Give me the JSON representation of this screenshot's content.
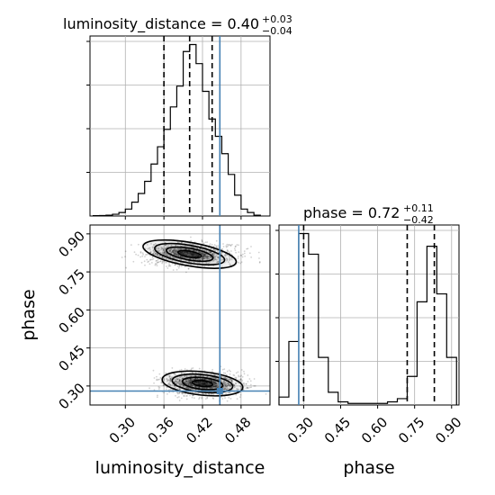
{
  "chart_data": [
    {
      "type": "histogram",
      "panel": "luminosity_distance-marginal",
      "parameter": "luminosity_distance",
      "title": {
        "prefix": "luminosity_distance = 0.40",
        "plus": "+0.03",
        "minus": "−0.04"
      },
      "xlim": [
        0.245,
        0.525
      ],
      "bin_edges": [
        0.25,
        0.26,
        0.27,
        0.28,
        0.29,
        0.3,
        0.31,
        0.32,
        0.33,
        0.34,
        0.35,
        0.36,
        0.37,
        0.38,
        0.39,
        0.4,
        0.41,
        0.42,
        0.43,
        0.44,
        0.45,
        0.46,
        0.47,
        0.48,
        0.49,
        0.5,
        0.51
      ],
      "counts": [
        0.2,
        0.3,
        0.5,
        1,
        2,
        4,
        8,
        13,
        20,
        30,
        40,
        50,
        63,
        75,
        95,
        99,
        88,
        72,
        56,
        46,
        36,
        24,
        12,
        4,
        2,
        0.5
      ],
      "quantiles": [
        0.36,
        0.4,
        0.435
      ],
      "truth": 0.447,
      "truth_color": "#4682b4"
    },
    {
      "type": "histogram",
      "panel": "phase-marginal",
      "parameter": "phase",
      "title": {
        "prefix": "phase = 0.72",
        "plus": "+0.11",
        "minus": "−0.42"
      },
      "xlim": [
        0.2,
        0.93
      ],
      "bin_edges": [
        0.2,
        0.24,
        0.28,
        0.32,
        0.36,
        0.4,
        0.44,
        0.48,
        0.52,
        0.56,
        0.6,
        0.64,
        0.68,
        0.72,
        0.76,
        0.8,
        0.84,
        0.88,
        0.92
      ],
      "counts": [
        5,
        40,
        108,
        95,
        30,
        8,
        2,
        1,
        1,
        1,
        1,
        2,
        4,
        18,
        65,
        100,
        70,
        30
      ],
      "quantiles": [
        0.3,
        0.72,
        0.83
      ],
      "truth": 0.28,
      "truth_color": "#4682b4"
    },
    {
      "type": "scatter",
      "panel": "joint-2d",
      "x_parameter": "luminosity_distance",
      "y_parameter": "phase",
      "xlabel": "luminosity_distance",
      "ylabel": "phase",
      "xlim": [
        0.245,
        0.525
      ],
      "ylim": [
        0.225,
        0.935
      ],
      "x_ticks": [
        "0.30",
        "0.36",
        "0.42",
        "0.48"
      ],
      "y_ticks": [
        "0.30",
        "0.45",
        "0.60",
        "0.75",
        "0.90"
      ],
      "clusters": [
        {
          "mode": "upper",
          "center": [
            0.4,
            0.82
          ],
          "spread": [
            0.035,
            0.022
          ],
          "weight": 0.45
        },
        {
          "mode": "lower",
          "center": [
            0.42,
            0.31
          ],
          "spread": [
            0.03,
            0.022
          ],
          "weight": 0.55
        }
      ],
      "contour_levels": [
        "0.5 sigma",
        "1 sigma",
        "1.5 sigma",
        "2 sigma"
      ],
      "truth": [
        0.447,
        0.28
      ],
      "truth_color": "#4682b4"
    }
  ],
  "axes": {
    "x_bottom_left_label": "luminosity_distance",
    "x_bottom_right_label": "phase",
    "y_left_label": "phase",
    "phase_x_ticks": [
      "0.30",
      "0.45",
      "0.60",
      "0.75",
      "0.90"
    ]
  }
}
